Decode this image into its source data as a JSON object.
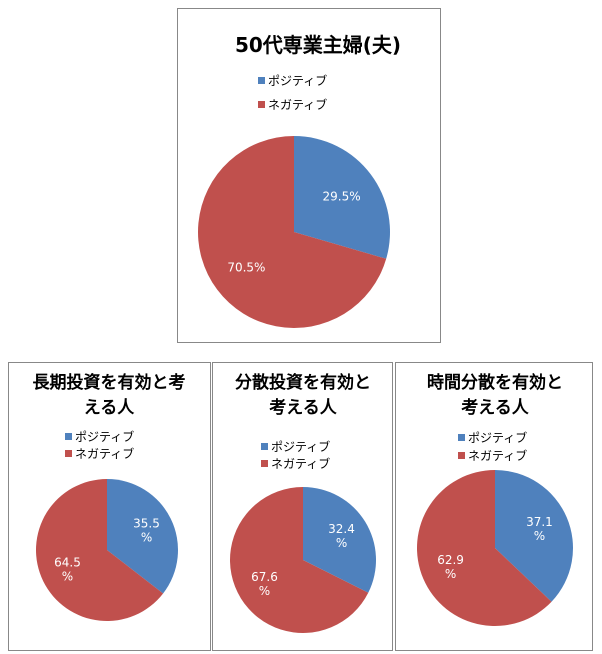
{
  "chart_data": [
    {
      "type": "pie",
      "title": "50代専業主婦(夫)",
      "categories": [
        "ポジティブ",
        "ネガティブ"
      ],
      "values": [
        29.5,
        70.5
      ],
      "value_labels": [
        "29.5%",
        "70.5%"
      ],
      "colors": [
        "#4f81bd",
        "#c0504d"
      ]
    },
    {
      "type": "pie",
      "title": "長期投資を有効と考える人",
      "categories": [
        "ポジティブ",
        "ネガティブ"
      ],
      "values": [
        35.5,
        64.5
      ],
      "value_labels": [
        "35.5%",
        "64.5%"
      ],
      "colors": [
        "#4f81bd",
        "#c0504d"
      ]
    },
    {
      "type": "pie",
      "title": "分散投資を有効と考える人",
      "categories": [
        "ポジティブ",
        "ネガティブ"
      ],
      "values": [
        32.4,
        67.6
      ],
      "value_labels": [
        "32.4%",
        "67.6%"
      ],
      "colors": [
        "#4f81bd",
        "#c0504d"
      ]
    },
    {
      "type": "pie",
      "title": "時間分散を有効と考える人",
      "categories": [
        "ポジティブ",
        "ネガティブ"
      ],
      "values": [
        37.1,
        62.9
      ],
      "value_labels": [
        "37.1%",
        "62.9%"
      ],
      "colors": [
        "#4f81bd",
        "#c0504d"
      ]
    }
  ]
}
